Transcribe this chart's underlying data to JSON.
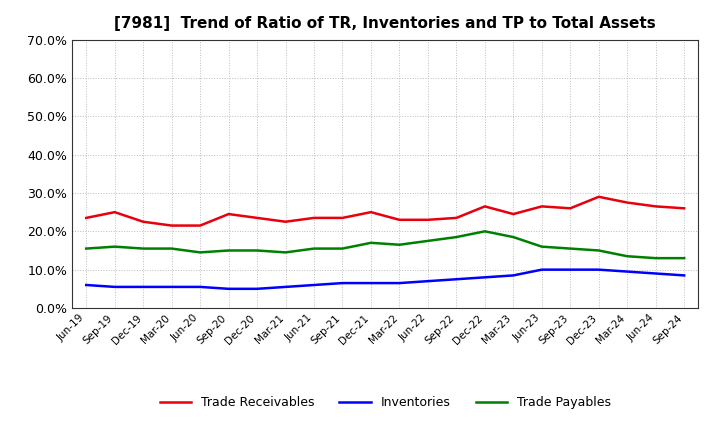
{
  "title": "[7981]  Trend of Ratio of TR, Inventories and TP to Total Assets",
  "xlabels": [
    "Jun-19",
    "Sep-19",
    "Dec-19",
    "Mar-20",
    "Jun-20",
    "Sep-20",
    "Dec-20",
    "Mar-21",
    "Jun-21",
    "Sep-21",
    "Dec-21",
    "Mar-22",
    "Jun-22",
    "Sep-22",
    "Dec-22",
    "Mar-23",
    "Jun-23",
    "Sep-23",
    "Dec-23",
    "Mar-24",
    "Jun-24",
    "Sep-24"
  ],
  "trade_receivables": [
    23.5,
    25.0,
    22.5,
    21.5,
    21.5,
    24.5,
    23.5,
    22.5,
    23.5,
    23.5,
    25.0,
    23.0,
    23.0,
    23.5,
    26.5,
    24.5,
    26.5,
    26.0,
    29.0,
    27.5,
    26.5,
    26.0
  ],
  "inventories": [
    6.0,
    5.5,
    5.5,
    5.5,
    5.5,
    5.0,
    5.0,
    5.5,
    6.0,
    6.5,
    6.5,
    6.5,
    7.0,
    7.5,
    8.0,
    8.5,
    10.0,
    10.0,
    10.0,
    9.5,
    9.0,
    8.5
  ],
  "trade_payables": [
    15.5,
    16.0,
    15.5,
    15.5,
    14.5,
    15.0,
    15.0,
    14.5,
    15.5,
    15.5,
    17.0,
    16.5,
    17.5,
    18.5,
    20.0,
    18.5,
    16.0,
    15.5,
    15.0,
    13.5,
    13.0,
    13.0
  ],
  "color_tr": "#e8000d",
  "color_inv": "#0000ff",
  "color_tp": "#008000",
  "ylim": [
    0,
    70
  ],
  "yticks": [
    0,
    10,
    20,
    30,
    40,
    50,
    60,
    70
  ],
  "ytick_labels": [
    "0.0%",
    "10.0%",
    "20.0%",
    "30.0%",
    "40.0%",
    "50.0%",
    "60.0%",
    "70.0%"
  ],
  "legend_tr": "Trade Receivables",
  "legend_inv": "Inventories",
  "legend_tp": "Trade Payables",
  "background_color": "#ffffff",
  "grid_color": "#bbbbbb",
  "linewidth": 1.8,
  "title_fontsize": 11
}
